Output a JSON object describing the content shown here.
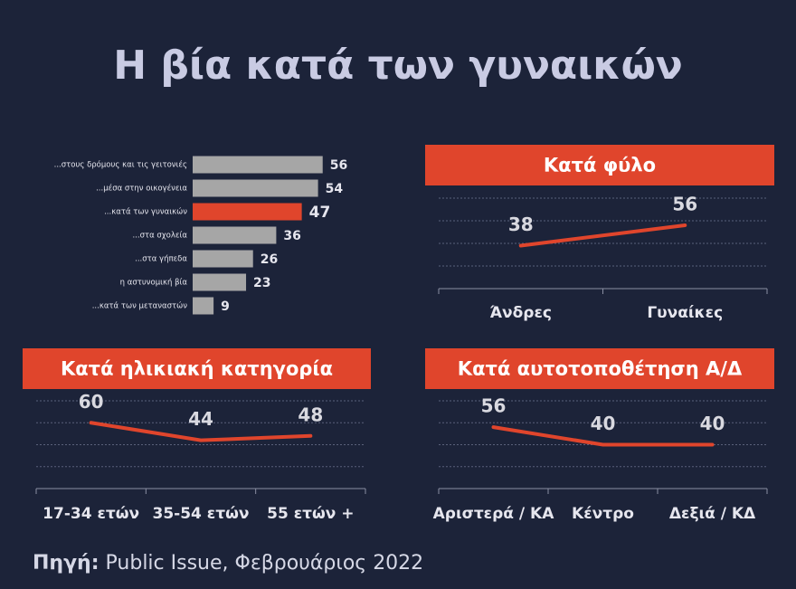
{
  "title": "Η βία κατά των γυναικών",
  "source": {
    "label": "Πηγή:",
    "text": "Public Issue, Φεβρουάριος 2022"
  },
  "chart_data": [
    {
      "type": "hbar",
      "categories": [
        "...στους δρόμους και τις γειτονιές",
        "...μέσα στην οικογένεια",
        "...κατά των γυναικών",
        "...στα σχολεία",
        "...στα γήπεδα",
        "η αστυνομική βία",
        "...κατά των μεταναστών"
      ],
      "values": [
        56,
        54,
        47,
        36,
        26,
        23,
        9
      ],
      "colors": [
        "#a6a6a6",
        "#a6a6a6",
        "#e0452c",
        "#a6a6a6",
        "#a6a6a6",
        "#a6a6a6",
        "#a6a6a6"
      ],
      "xlim": [
        0,
        60
      ]
    },
    {
      "type": "line",
      "title": "Κατά φύλο",
      "categories": [
        "Άνδρες",
        "Γυναίκες"
      ],
      "values": [
        38,
        56
      ],
      "color": "#e0452c",
      "ylim": [
        0,
        80
      ],
      "yticks": [
        0,
        20,
        40,
        60,
        80
      ],
      "grid": true
    },
    {
      "type": "line",
      "title": "Κατά ηλικιακή κατηγορία",
      "categories": [
        "17-34 ετών",
        "35-54 ετών",
        "55 ετών +"
      ],
      "values": [
        60,
        44,
        48
      ],
      "color": "#e0452c",
      "ylim": [
        0,
        80
      ],
      "yticks": [
        0,
        20,
        40,
        60,
        80
      ],
      "grid": true
    },
    {
      "type": "line",
      "title": "Κατά αυτοτοποθέτηση Α/Δ",
      "categories": [
        "Αριστερά / ΚΑ",
        "Κέντρο",
        "Δεξιά / ΚΔ"
      ],
      "values": [
        56,
        40,
        40
      ],
      "color": "#e0452c",
      "ylim": [
        0,
        80
      ],
      "yticks": [
        0,
        20,
        40,
        60,
        80
      ],
      "grid": true
    }
  ]
}
